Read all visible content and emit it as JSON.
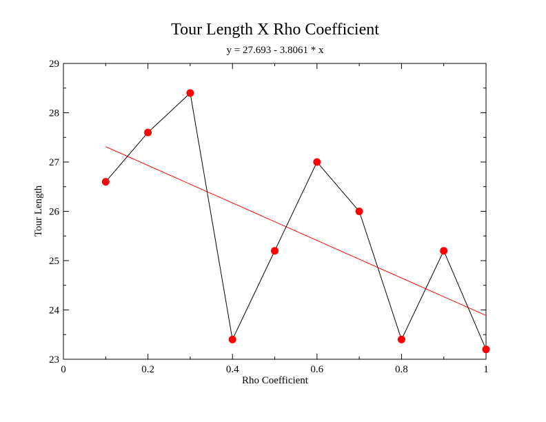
{
  "chart_data": {
    "type": "line",
    "title": "Tour Length X Rho Coefficient",
    "subtitle": "y = 27.693 - 3.8061 * x",
    "xlabel": "Rho Coefficient",
    "ylabel": "Tour Length",
    "xlim": [
      0,
      1
    ],
    "ylim": [
      23,
      29
    ],
    "x_ticks": [
      0,
      0.2,
      0.4,
      0.6,
      0.8,
      1
    ],
    "x_tick_labels": [
      "0",
      "0.2",
      "0.4",
      "0.6",
      "0.8",
      "1"
    ],
    "y_ticks": [
      23,
      24,
      25,
      26,
      27,
      28,
      29
    ],
    "y_tick_labels": [
      "23",
      "24",
      "25",
      "26",
      "27",
      "28",
      "29"
    ],
    "grid": false,
    "series": [
      {
        "x": [
          0.1,
          0.2,
          0.3,
          0.4,
          0.5,
          0.6,
          0.7,
          0.8,
          0.9,
          1.0
        ],
        "values": [
          26.6,
          27.6,
          28.4,
          23.4,
          25.2,
          27.0,
          26.0,
          23.4,
          25.2,
          23.2
        ],
        "line_color": "#000000",
        "marker_color": "#ff0000"
      }
    ],
    "fit_line": {
      "intercept": 27.693,
      "slope": -3.8061,
      "x_range": [
        0.1,
        1.0
      ],
      "color": "#ff0000"
    }
  }
}
